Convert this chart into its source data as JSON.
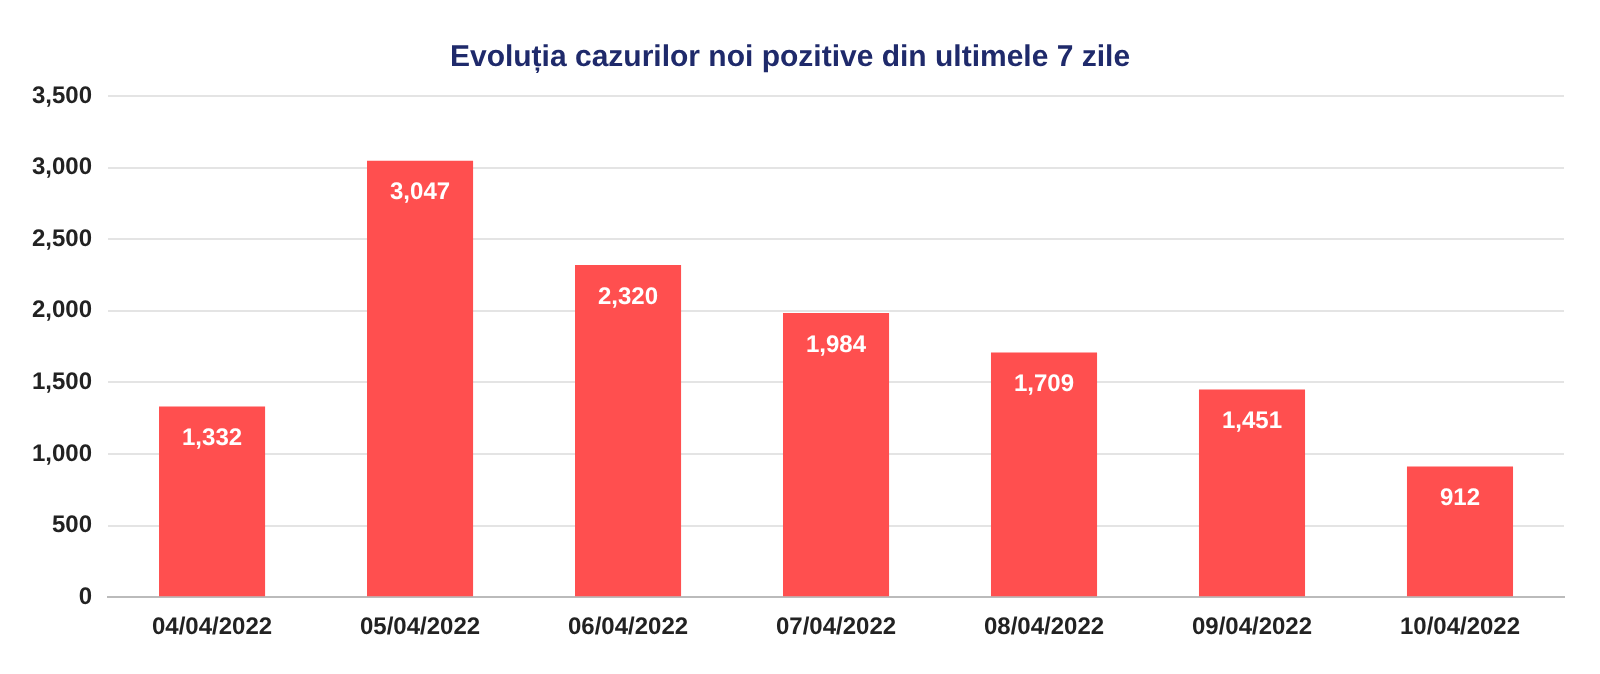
{
  "chart_data": {
    "type": "bar",
    "title": "Evoluția cazurilor noi pozitive din ultimele 7 zile",
    "categories": [
      "04/04/2022",
      "05/04/2022",
      "06/04/2022",
      "07/04/2022",
      "08/04/2022",
      "09/04/2022",
      "10/04/2022"
    ],
    "values": [
      1332,
      3047,
      2320,
      1984,
      1709,
      1451,
      912
    ],
    "value_labels": [
      "1,332",
      "3,047",
      "2,320",
      "1,984",
      "1,709",
      "1,451",
      "912"
    ],
    "color": "#ff4f4f",
    "ylim": [
      0,
      3500
    ],
    "yticks": [
      0,
      500,
      {
        "value": 1000,
        "label": "1,000"
      },
      {
        "value": 1500,
        "label": "1,500"
      },
      {
        "value": 2000,
        "label": "2,000"
      },
      {
        "value": 2500,
        "label": "2,500"
      },
      {
        "value": 3000,
        "label": "3,000"
      },
      {
        "value": 3500,
        "label": "3,500"
      }
    ],
    "grid": "y"
  }
}
